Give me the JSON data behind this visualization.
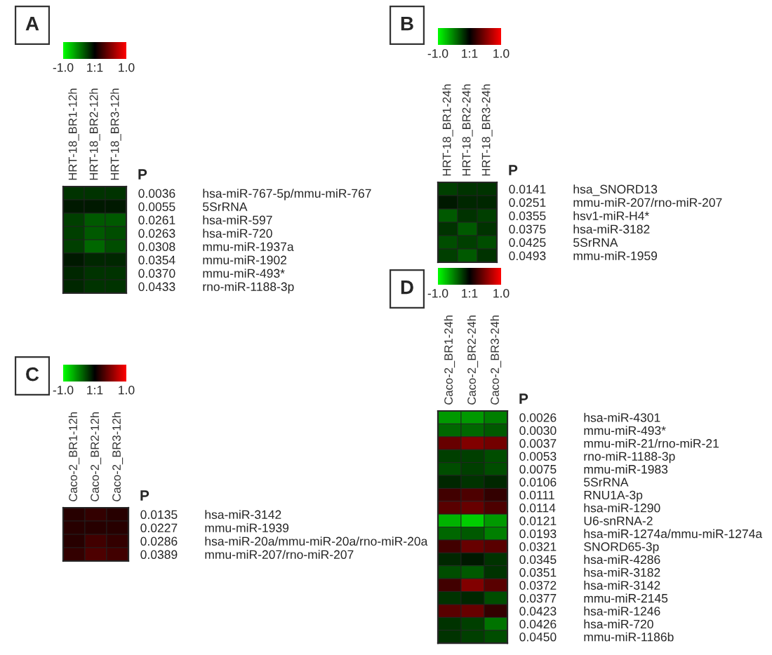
{
  "chart_data": [
    {
      "type": "heatmap",
      "title": "A",
      "categories": [
        "HRT-18_BR1-12h",
        "HRT-18_BR2-12h",
        "HRT-18_BR3-12h"
      ],
      "y_categories": [
        "0.0036",
        "0.0055",
        "0.0261",
        "0.0263",
        "0.0308",
        "0.0354",
        "0.0370",
        "0.0433"
      ],
      "y2_categories": [
        "hsa-miR-767-5p/mmu-miR-767",
        "5SrRNA",
        "hsa-miR-597",
        "hsa-miR-720",
        "mmu-miR-1937a",
        "mmu-miR-1902",
        "mmu-miR-493*",
        "rno-miR-1188-3p"
      ],
      "cells": [
        [
          -0.2,
          -0.2,
          -0.2
        ],
        [
          -0.1,
          -0.1,
          -0.1
        ],
        [
          -0.25,
          -0.35,
          -0.35
        ],
        [
          -0.25,
          -0.35,
          -0.3
        ],
        [
          -0.25,
          -0.4,
          -0.3
        ],
        [
          -0.1,
          -0.15,
          -0.15
        ],
        [
          -0.15,
          -0.2,
          -0.2
        ],
        [
          -0.15,
          -0.2,
          -0.2
        ]
      ],
      "clim": [
        -1,
        1
      ],
      "cticks": [
        {
          "value": -1,
          "label": "-1.0"
        },
        {
          "value": 0,
          "label": "1:1"
        },
        {
          "value": 1,
          "label": "1.0"
        }
      ],
      "annotations": [
        "P"
      ]
    },
    {
      "type": "heatmap",
      "title": "B",
      "categories": [
        "HRT-18_BR1-24h",
        "HRT-18_BR2-24h",
        "HRT-18_BR3-24h"
      ],
      "y_categories": [
        "0.0141",
        "0.0251",
        "0.0355",
        "0.0375",
        "0.0425",
        "0.0493"
      ],
      "y2_categories": [
        "hsa_SNORD13",
        "mmu-miR-207/rno-miR-207",
        "hsv1-miR-H4*",
        "hsa-miR-3182",
        "5SrRNA",
        "mmu-miR-1959"
      ],
      "cells": [
        [
          -0.25,
          -0.2,
          -0.2
        ],
        [
          -0.1,
          -0.15,
          -0.15
        ],
        [
          -0.35,
          -0.2,
          -0.25
        ],
        [
          -0.2,
          -0.35,
          -0.2
        ],
        [
          -0.3,
          -0.25,
          -0.3
        ],
        [
          -0.25,
          -0.35,
          -0.2
        ]
      ],
      "clim": [
        -1,
        1
      ],
      "cticks": [
        {
          "value": -1,
          "label": "-1.0"
        },
        {
          "value": 0,
          "label": "1:1"
        },
        {
          "value": 1,
          "label": "1.0"
        }
      ],
      "annotations": [
        "P"
      ]
    },
    {
      "type": "heatmap",
      "title": "C",
      "categories": [
        "Caco-2_BR1-12h",
        "Caco-2_BR2-12h",
        "Caco-2_BR3-12h"
      ],
      "y_categories": [
        "0.0135",
        "0.0227",
        "0.0286",
        "0.0389"
      ],
      "y2_categories": [
        "hsa-miR-3142",
        "mmu-miR-1939",
        "hsa-miR-20a/mmu-miR-20a/rno-miR-20a",
        "mmu-miR-207/rno-miR-207"
      ],
      "cells": [
        [
          0.15,
          0.2,
          0.15
        ],
        [
          0.15,
          0.15,
          0.15
        ],
        [
          0.15,
          0.25,
          0.2
        ],
        [
          0.2,
          0.3,
          0.25
        ]
      ],
      "clim": [
        -1,
        1
      ],
      "cticks": [
        {
          "value": -1,
          "label": "-1.0"
        },
        {
          "value": 0,
          "label": "1:1"
        },
        {
          "value": 1,
          "label": "1.0"
        }
      ],
      "annotations": [
        "P"
      ]
    },
    {
      "type": "heatmap",
      "title": "D",
      "categories": [
        "Caco-2_BR1-24h",
        "Caco-2_BR2-24h",
        "Caco-2_BR3-24h"
      ],
      "y_categories": [
        "0.0026",
        "0.0030",
        "0.0037",
        "0.0053",
        "0.0075",
        "0.0106",
        "0.0111",
        "0.0114",
        "0.0121",
        "0.0193",
        "0.0321",
        "0.0345",
        "0.0351",
        "0.0372",
        "0.0377",
        "0.0423",
        "0.0426",
        "0.0450"
      ],
      "y2_categories": [
        "hsa-miR-4301",
        "mmu-miR-493*",
        "mmu-miR-21/rno-miR-21",
        "rno-miR-1188-3p",
        "mmu-miR-1983",
        "5SrRNA",
        "RNU1A-3p",
        "hsa-miR-1290",
        "U6-snRNA-2",
        "hsa-miR-1274a/mmu-miR-1274a",
        "SNORD65-3p",
        "hsa-miR-4286",
        "hsa-miR-3182",
        "hsa-miR-3142",
        "mmu-miR-2145",
        "hsa-miR-1246",
        "hsa-miR-720",
        "mmu-miR-1186b"
      ],
      "cells": [
        [
          -0.6,
          -0.6,
          -0.5
        ],
        [
          -0.4,
          -0.4,
          -0.35
        ],
        [
          0.4,
          0.5,
          0.45
        ],
        [
          -0.25,
          -0.25,
          -0.3
        ],
        [
          -0.3,
          -0.25,
          -0.3
        ],
        [
          -0.15,
          -0.2,
          -0.15
        ],
        [
          0.25,
          0.3,
          0.2
        ],
        [
          0.35,
          0.4,
          0.3
        ],
        [
          -0.7,
          -0.8,
          -0.6
        ],
        [
          -0.4,
          -0.35,
          -0.5
        ],
        [
          0.25,
          0.4,
          0.35
        ],
        [
          -0.15,
          -0.1,
          -0.2
        ],
        [
          -0.3,
          -0.35,
          -0.2
        ],
        [
          0.25,
          0.5,
          0.35
        ],
        [
          -0.2,
          -0.15,
          -0.3
        ],
        [
          0.35,
          0.4,
          0.2
        ],
        [
          -0.2,
          -0.25,
          -0.45
        ],
        [
          -0.2,
          -0.25,
          -0.3
        ]
      ],
      "clim": [
        -1,
        1
      ],
      "cticks": [
        {
          "value": -1,
          "label": "-1.0"
        },
        {
          "value": 0,
          "label": "1:1"
        },
        {
          "value": 1,
          "label": "1.0"
        }
      ],
      "annotations": [
        "P"
      ]
    }
  ]
}
